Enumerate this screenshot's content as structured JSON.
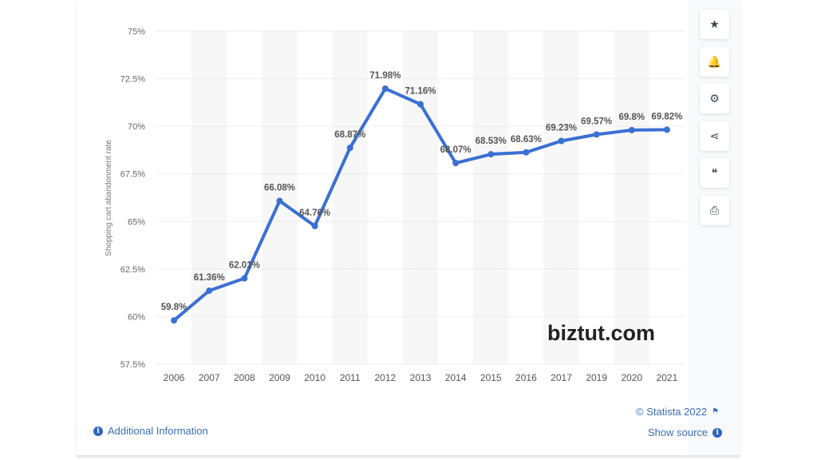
{
  "chart_data": {
    "type": "line",
    "categories": [
      "2006",
      "2007",
      "2008",
      "2009",
      "2010",
      "2011",
      "2012",
      "2013",
      "2014",
      "2015",
      "2016",
      "2017",
      "2019",
      "2020",
      "2021"
    ],
    "values": [
      59.8,
      61.36,
      62.01,
      66.08,
      64.76,
      68.87,
      71.98,
      71.16,
      68.07,
      68.53,
      68.63,
      69.23,
      69.57,
      69.8,
      69.82
    ],
    "data_labels": [
      "59.8%",
      "61.36%",
      "62.01%",
      "66.08%",
      "64.76%",
      "68.87%",
      "71.98%",
      "71.16%",
      "68.07%",
      "68.53%",
      "68.63%",
      "69.23%",
      "69.57%",
      "69.8%",
      "69.82%"
    ],
    "ylabel": "Shopping cart abandonment rate",
    "xlabel": "",
    "ylim": [
      57.5,
      75
    ],
    "yticks": [
      57.5,
      60,
      62.5,
      65,
      67.5,
      70,
      72.5,
      75
    ],
    "ytick_labels": [
      "57.5%",
      "60%",
      "62.5%",
      "65%",
      "67.5%",
      "70%",
      "72.5%",
      "75%"
    ],
    "grid": true,
    "line_color": "#3b6fd4"
  },
  "side_buttons": [
    {
      "icon": "star-icon",
      "glyph": "★"
    },
    {
      "icon": "bell-icon",
      "glyph": "🔔"
    },
    {
      "icon": "gear-icon",
      "glyph": "⚙"
    },
    {
      "icon": "share-icon",
      "glyph": "⋖"
    },
    {
      "icon": "quote-icon",
      "glyph": "❝"
    },
    {
      "icon": "print-icon",
      "glyph": "⎙"
    }
  ],
  "watermark": "biztut.com",
  "footer": {
    "copyright": "© Statista 2022",
    "show_source": "Show source",
    "additional_info": "Additional Information"
  }
}
